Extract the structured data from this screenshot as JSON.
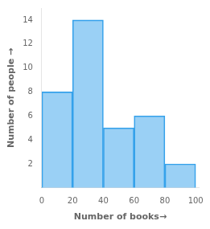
{
  "chart_data": {
    "type": "histogram",
    "bins": [
      0,
      20,
      40,
      60,
      80,
      100
    ],
    "values": [
      8,
      14,
      5,
      6,
      2
    ],
    "xlabel": "Number of books→",
    "ylabel": "Number of people →",
    "xlim": [
      0,
      102
    ],
    "ylim": [
      0,
      15
    ],
    "xticks": [
      0,
      20,
      40,
      60,
      80,
      100
    ],
    "yticks": [
      2,
      4,
      6,
      8,
      10,
      12,
      14
    ],
    "grid": false
  }
}
